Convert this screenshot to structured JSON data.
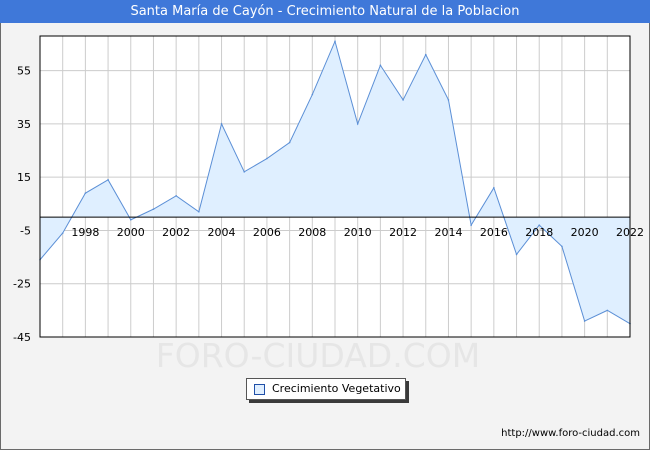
{
  "header": {
    "title": "Santa María de Cayón - Crecimiento Natural de la Poblacion"
  },
  "watermark": "FORO-CIUDAD.COM",
  "footer": {
    "url": "http://www.foro-ciudad.com"
  },
  "colors": {
    "title_bar": "#3f78d9",
    "area_fill": "#dfefff",
    "line": "#5b8fd6",
    "grid": "#cccccc"
  },
  "chart_data": {
    "type": "area",
    "title": "Santa María de Cayón - Crecimiento Natural de la Poblacion",
    "xlim": [
      1996,
      2022
    ],
    "ylim": [
      -45,
      68
    ],
    "yticks": [
      -45,
      -25,
      -5,
      15,
      35,
      55
    ],
    "xticks": [
      1998,
      2000,
      2002,
      2004,
      2006,
      2008,
      2010,
      2012,
      2014,
      2016,
      2018,
      2020,
      2022
    ],
    "baseline": 0,
    "grid": true,
    "legend_position": "bottom-center",
    "series": [
      {
        "name": "Crecimiento Vegetativo",
        "x": [
          1996,
          1997,
          1998,
          1999,
          2000,
          2001,
          2002,
          2003,
          2004,
          2005,
          2006,
          2007,
          2008,
          2009,
          2010,
          2011,
          2012,
          2013,
          2014,
          2015,
          2016,
          2017,
          2018,
          2019,
          2020,
          2021,
          2022
        ],
        "values": [
          -16,
          -6,
          9,
          14,
          -1,
          3,
          8,
          2,
          35,
          17,
          22,
          28,
          46,
          66,
          35,
          57,
          44,
          61,
          44,
          -3,
          11,
          -14,
          -3,
          -11,
          -39,
          -35,
          -40
        ]
      }
    ]
  }
}
